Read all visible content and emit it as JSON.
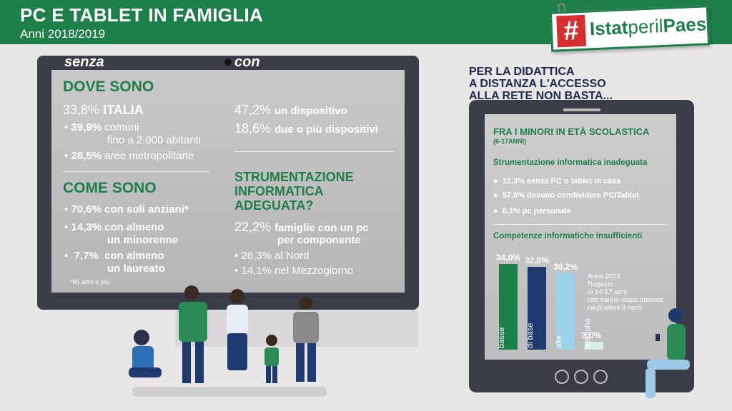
{
  "header": {
    "title": "PC E TABLET IN FAMIGLIA",
    "subtitle": "Anni 2018/2019"
  },
  "logo": {
    "hash": "#",
    "word1": "Istat",
    "word2": "peril",
    "word3": "Paese"
  },
  "monitor": {
    "label_without": "senza",
    "label_with": "con",
    "dove": {
      "title": "DOVE SONO",
      "italia_pct": "33,8%",
      "italia_label": "ITALIA",
      "items": [
        {
          "pct": "39,9%",
          "text": "comuni",
          "text2": "fino a 2.000 abitanti"
        },
        {
          "pct": "28,5%",
          "text": "aree metropolitane"
        }
      ]
    },
    "come": {
      "title": "COME SONO",
      "items": [
        {
          "pct": "70,6%",
          "text": "con soli anziani*"
        },
        {
          "pct": "14,3%",
          "text": "con almeno",
          "text2": "un minorenne"
        },
        {
          "pct": "7,7%",
          "text": "con almeno",
          "text2": "un laureato"
        }
      ],
      "note": "*65 anni e più"
    },
    "con": {
      "items": [
        {
          "pct": "47,2%",
          "text": "un dispositivo"
        },
        {
          "pct": "18,6%",
          "text": "due o più dispositivi"
        }
      ]
    },
    "strum": {
      "title1": "STRUMENTAZIONE",
      "title2": "INFORMATICA",
      "title3": "ADEGUATA?",
      "main_pct": "22,2%",
      "main_text": "famiglie con un pc",
      "main_text2": "per componente",
      "items": [
        {
          "pct": "26,3%",
          "text": "al Nord"
        },
        {
          "pct": "14,1%",
          "text": "nel Mezzogiorno"
        }
      ]
    }
  },
  "tablet": {
    "question1": "PER LA DIDATTICA",
    "question2": "A DISTANZA L'ACCESSO",
    "question3": "ALLA RETE NON BASTA...",
    "title": "FRA I MINORI IN ETÀ SCOLASTICA",
    "title_sub": "(6-17ANNI)",
    "section1": "Strumentazione informatica inadeguata",
    "items": [
      "12,3% senza PC o tablet in casa",
      "57,0% devono condividere PC/Tablet",
      "6,1% pc personale"
    ],
    "section2": "Competenze informatiche insufficienti",
    "legend1": "Anno 2019",
    "legend2": "Ragazzi",
    "legend3": "di 14-17 anni",
    "legend4": "che hanno usato Internet",
    "legend5": "negli ultimi 3 mesi"
  },
  "chart_data": {
    "type": "bar",
    "categories": [
      "basse",
      "di base",
      "alte",
      "nessuna"
    ],
    "values": [
      34.0,
      32.8,
      30.2,
      3.0
    ],
    "value_labels": [
      "34,0%",
      "32,8%",
      "30,2%",
      "3,0%"
    ],
    "colors": [
      "#1f7f4a",
      "#1e3a6e",
      "#9dd3ea",
      "#d8efe9"
    ],
    "ylim": [
      0,
      34
    ]
  }
}
